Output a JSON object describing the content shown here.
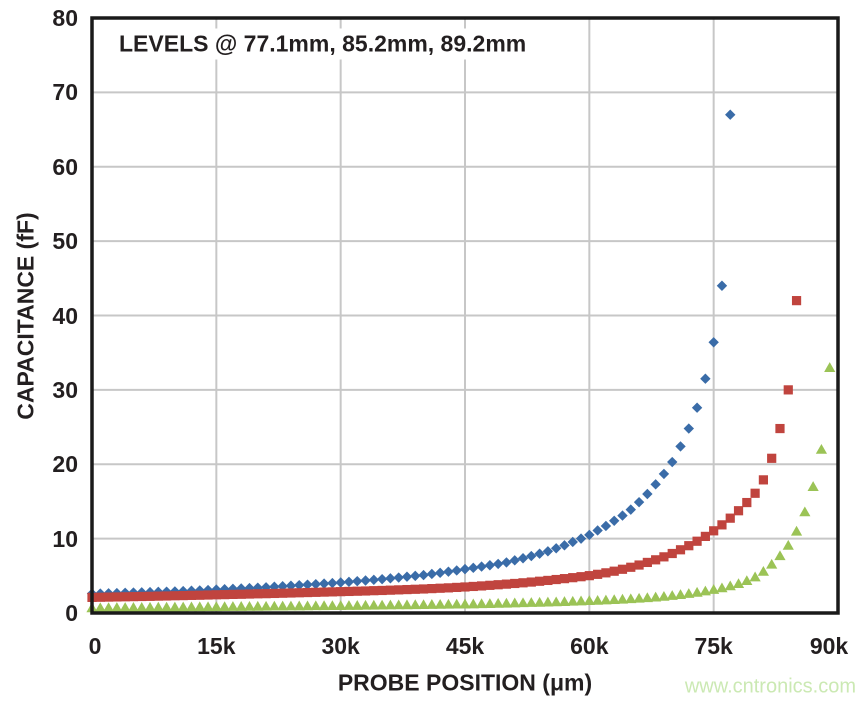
{
  "page": {
    "background": "#ffffff",
    "text_color": "#231f20",
    "grid_color": "#c7c7c7",
    "frame_color": "#1a1a1a"
  },
  "annotation": {
    "text": "LEVELS @ 77.1mm, 85.2mm, 89.2mm"
  },
  "watermark": {
    "text": "www.cntronics.com",
    "color": "#cbe9b3"
  },
  "chart_data": {
    "type": "scatter",
    "title": "",
    "xlabel": "PROBE POSITION (μm)",
    "ylabel": "CAPACITANCE (fF)",
    "xlim": [
      0,
      90000
    ],
    "ylim": [
      0,
      80
    ],
    "grid": true,
    "legend": "none",
    "annotation": "LEVELS @ 77.1mm, 85.2mm, 89.2mm",
    "x_ticks": [
      {
        "v": 0,
        "label": "0"
      },
      {
        "v": 15000,
        "label": "15k"
      },
      {
        "v": 30000,
        "label": "30k"
      },
      {
        "v": 45000,
        "label": "45k"
      },
      {
        "v": 60000,
        "label": "60k"
      },
      {
        "v": 75000,
        "label": "75k"
      },
      {
        "v": 90000,
        "label": "90k"
      }
    ],
    "y_ticks": [
      {
        "v": 0,
        "label": "0"
      },
      {
        "v": 10,
        "label": "10"
      },
      {
        "v": 20,
        "label": "20"
      },
      {
        "v": 30,
        "label": "30"
      },
      {
        "v": 40,
        "label": "40"
      },
      {
        "v": 50,
        "label": "50"
      },
      {
        "v": 60,
        "label": "60"
      },
      {
        "v": 70,
        "label": "70"
      },
      {
        "v": 80,
        "label": "80"
      }
    ],
    "series": [
      {
        "name": "Level 77.1mm",
        "marker": "diamond",
        "color": "#3a6ca8",
        "x_start_um": 0,
        "x_step_um": 1000,
        "values": [
          2.6,
          2.62,
          2.65,
          2.68,
          2.72,
          2.75,
          2.78,
          2.81,
          2.84,
          2.87,
          2.9,
          2.94,
          2.99,
          3.04,
          3.09,
          3.15,
          3.2,
          3.25,
          3.3,
          3.35,
          3.4,
          3.46,
          3.53,
          3.6,
          3.67,
          3.74,
          3.81,
          3.88,
          3.95,
          4.02,
          4.1,
          4.19,
          4.28,
          4.37,
          4.46,
          4.55,
          4.66,
          4.77,
          4.88,
          4.99,
          5.1,
          5.25,
          5.4,
          5.56,
          5.72,
          5.9,
          6.07,
          6.24,
          6.42,
          6.6,
          6.8,
          7.08,
          7.36,
          7.66,
          7.97,
          8.3,
          8.7,
          9.1,
          9.55,
          10.0,
          10.5,
          11.1,
          11.7,
          12.4,
          13.1,
          13.9,
          14.9,
          16.0,
          17.3,
          18.7,
          20.3,
          22.4,
          24.8,
          27.6,
          31.5,
          36.4,
          44.0,
          67.0
        ]
      },
      {
        "name": "Level 85.2mm",
        "marker": "square",
        "color": "#c0443e",
        "x_start_um": 0,
        "x_step_um": 1000,
        "values": [
          2.1,
          2.12,
          2.14,
          2.16,
          2.18,
          2.2,
          2.22,
          2.24,
          2.27,
          2.29,
          2.32,
          2.34,
          2.37,
          2.39,
          2.42,
          2.45,
          2.47,
          2.5,
          2.52,
          2.55,
          2.58,
          2.6,
          2.63,
          2.66,
          2.69,
          2.72,
          2.75,
          2.78,
          2.81,
          2.84,
          2.87,
          2.9,
          2.93,
          2.96,
          3.0,
          3.03,
          3.07,
          3.11,
          3.15,
          3.19,
          3.23,
          3.28,
          3.33,
          3.38,
          3.44,
          3.5,
          3.57,
          3.64,
          3.72,
          3.8,
          3.88,
          3.97,
          4.06,
          4.16,
          4.27,
          4.38,
          4.5,
          4.62,
          4.75,
          4.88,
          5.02,
          5.2,
          5.4,
          5.62,
          5.88,
          6.15,
          6.45,
          6.8,
          7.15,
          7.55,
          8.0,
          8.5,
          9.05,
          9.65,
          10.3,
          11.05,
          11.85,
          12.75,
          13.75,
          14.85,
          16.1,
          17.9,
          20.8,
          24.8,
          30.0,
          42.0
        ]
      },
      {
        "name": "Level 89.2mm",
        "marker": "triangle",
        "color": "#9bc356",
        "x_start_um": 0,
        "x_step_um": 1000,
        "values": [
          0.7,
          0.71,
          0.72,
          0.73,
          0.74,
          0.75,
          0.76,
          0.77,
          0.78,
          0.79,
          0.8,
          0.81,
          0.82,
          0.83,
          0.84,
          0.85,
          0.86,
          0.87,
          0.88,
          0.89,
          0.9,
          0.91,
          0.92,
          0.93,
          0.94,
          0.95,
          0.96,
          0.97,
          0.98,
          0.99,
          1.0,
          1.01,
          1.02,
          1.04,
          1.05,
          1.06,
          1.08,
          1.09,
          1.1,
          1.12,
          1.13,
          1.15,
          1.16,
          1.18,
          1.19,
          1.2,
          1.22,
          1.25,
          1.27,
          1.3,
          1.32,
          1.35,
          1.38,
          1.41,
          1.44,
          1.47,
          1.5,
          1.54,
          1.58,
          1.62,
          1.66,
          1.7,
          1.75,
          1.8,
          1.86,
          1.92,
          1.98,
          2.06,
          2.14,
          2.24,
          2.35,
          2.48,
          2.62,
          2.78,
          2.96,
          3.16,
          3.38,
          3.65,
          3.95,
          4.35,
          4.85,
          5.6,
          6.55,
          7.7,
          9.1,
          11.0,
          13.6,
          17.0,
          22.0,
          33.0
        ]
      }
    ]
  }
}
